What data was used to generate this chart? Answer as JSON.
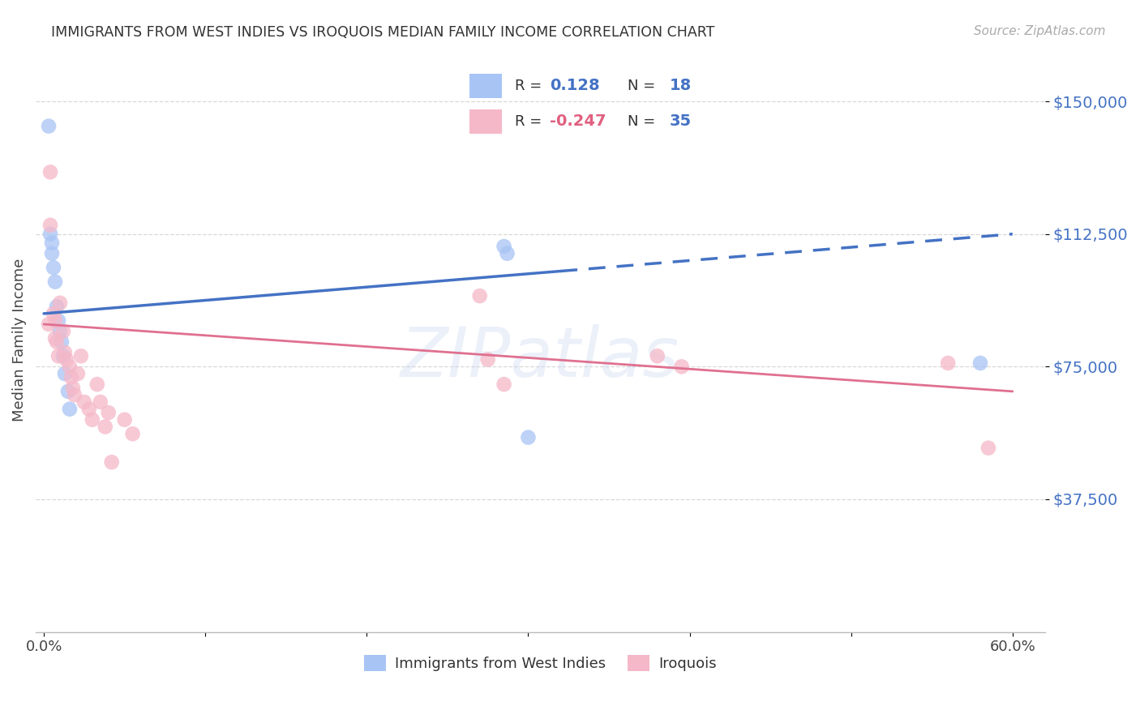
{
  "title": "IMMIGRANTS FROM WEST INDIES VS IROQUOIS MEDIAN FAMILY INCOME CORRELATION CHART",
  "source": "Source: ZipAtlas.com",
  "ylabel": "Median Family Income",
  "ytick_labels": [
    "$150,000",
    "$112,500",
    "$75,000",
    "$37,500"
  ],
  "ytick_values": [
    150000,
    112500,
    75000,
    37500
  ],
  "ymin": 0,
  "ymax": 165000,
  "xmin": -0.005,
  "xmax": 0.62,
  "blue_color": "#a8c4f5",
  "pink_color": "#f5b8c8",
  "blue_line_color": "#4472c4",
  "pink_line_color": "#e07090",
  "blue_label": "Immigrants from West Indies",
  "pink_label": "Iroquois",
  "blue_scatter_x": [
    0.003,
    0.004,
    0.005,
    0.005,
    0.006,
    0.007,
    0.008,
    0.009,
    0.01,
    0.011,
    0.012,
    0.013,
    0.015,
    0.016,
    0.285,
    0.287,
    0.3,
    0.58
  ],
  "blue_scatter_y": [
    143000,
    112500,
    110000,
    107000,
    103000,
    99000,
    92000,
    88000,
    85000,
    82000,
    78000,
    73000,
    68000,
    63000,
    109000,
    107000,
    55000,
    76000
  ],
  "pink_scatter_x": [
    0.003,
    0.004,
    0.004,
    0.006,
    0.007,
    0.007,
    0.008,
    0.009,
    0.01,
    0.012,
    0.013,
    0.014,
    0.016,
    0.017,
    0.018,
    0.019,
    0.021,
    0.023,
    0.025,
    0.028,
    0.03,
    0.033,
    0.035,
    0.038,
    0.04,
    0.042,
    0.05,
    0.055,
    0.27,
    0.275,
    0.285,
    0.38,
    0.395,
    0.56,
    0.585
  ],
  "pink_scatter_y": [
    87000,
    130000,
    115000,
    90000,
    88000,
    83000,
    82000,
    78000,
    93000,
    85000,
    79000,
    77000,
    75000,
    72000,
    69000,
    67000,
    73000,
    78000,
    65000,
    63000,
    60000,
    70000,
    65000,
    58000,
    62000,
    48000,
    60000,
    56000,
    95000,
    77000,
    70000,
    78000,
    75000,
    76000,
    52000
  ],
  "watermark": "ZIPatlas",
  "background_color": "#ffffff",
  "grid_color": "#d8d8d8",
  "blue_line_x_solid_end": 0.32,
  "blue_line_x_dash_end": 0.6
}
